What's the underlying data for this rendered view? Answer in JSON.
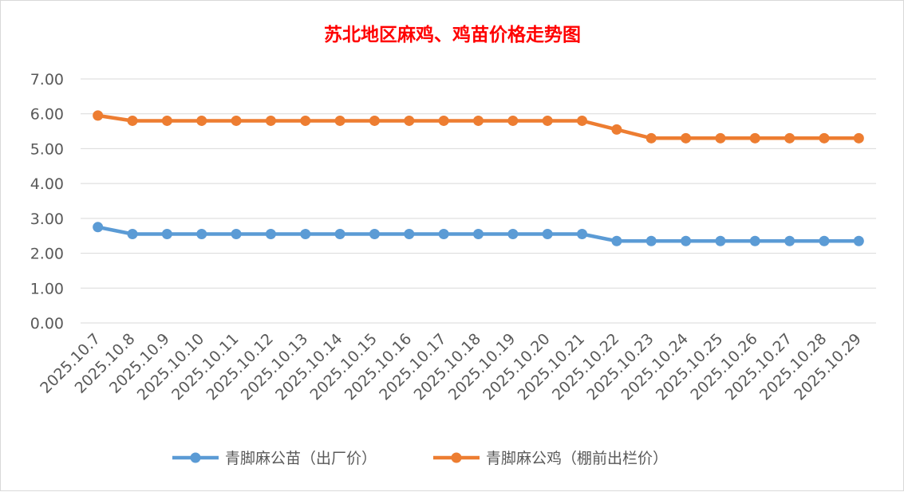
{
  "chart_data": {
    "type": "line",
    "title": "苏北地区麻鸡、鸡苗价格走势图",
    "xlabel": "",
    "ylabel": "",
    "ylim": [
      0,
      7
    ],
    "ytick_step": 1,
    "grid": true,
    "legend_position": "bottom",
    "categories": [
      "2025.10.7",
      "2025.10.8",
      "2025.10.9",
      "2025.10.10",
      "2025.10.11",
      "2025.10.12",
      "2025.10.13",
      "2025.10.14",
      "2025.10.15",
      "2025.10.16",
      "2025.10.17",
      "2025.10.18",
      "2025.10.19",
      "2025.10.20",
      "2025.10.21",
      "2025.10.22",
      "2025.10.23",
      "2025.10.24",
      "2025.10.25",
      "2025.10.26",
      "2025.10.27",
      "2025.10.28",
      "2025.10.29"
    ],
    "series": [
      {
        "name": "青脚麻公苗（出厂价）",
        "color": "#5b9bd5",
        "values": [
          2.75,
          2.55,
          2.55,
          2.55,
          2.55,
          2.55,
          2.55,
          2.55,
          2.55,
          2.55,
          2.55,
          2.55,
          2.55,
          2.55,
          2.55,
          2.35,
          2.35,
          2.35,
          2.35,
          2.35,
          2.35,
          2.35,
          2.35
        ]
      },
      {
        "name": "青脚麻公鸡（棚前出栏价）",
        "color": "#ed7d31",
        "values": [
          5.95,
          5.8,
          5.8,
          5.8,
          5.8,
          5.8,
          5.8,
          5.8,
          5.8,
          5.8,
          5.8,
          5.8,
          5.8,
          5.8,
          5.8,
          5.55,
          5.3,
          5.3,
          5.3,
          5.3,
          5.3,
          5.3,
          5.3
        ]
      }
    ]
  }
}
